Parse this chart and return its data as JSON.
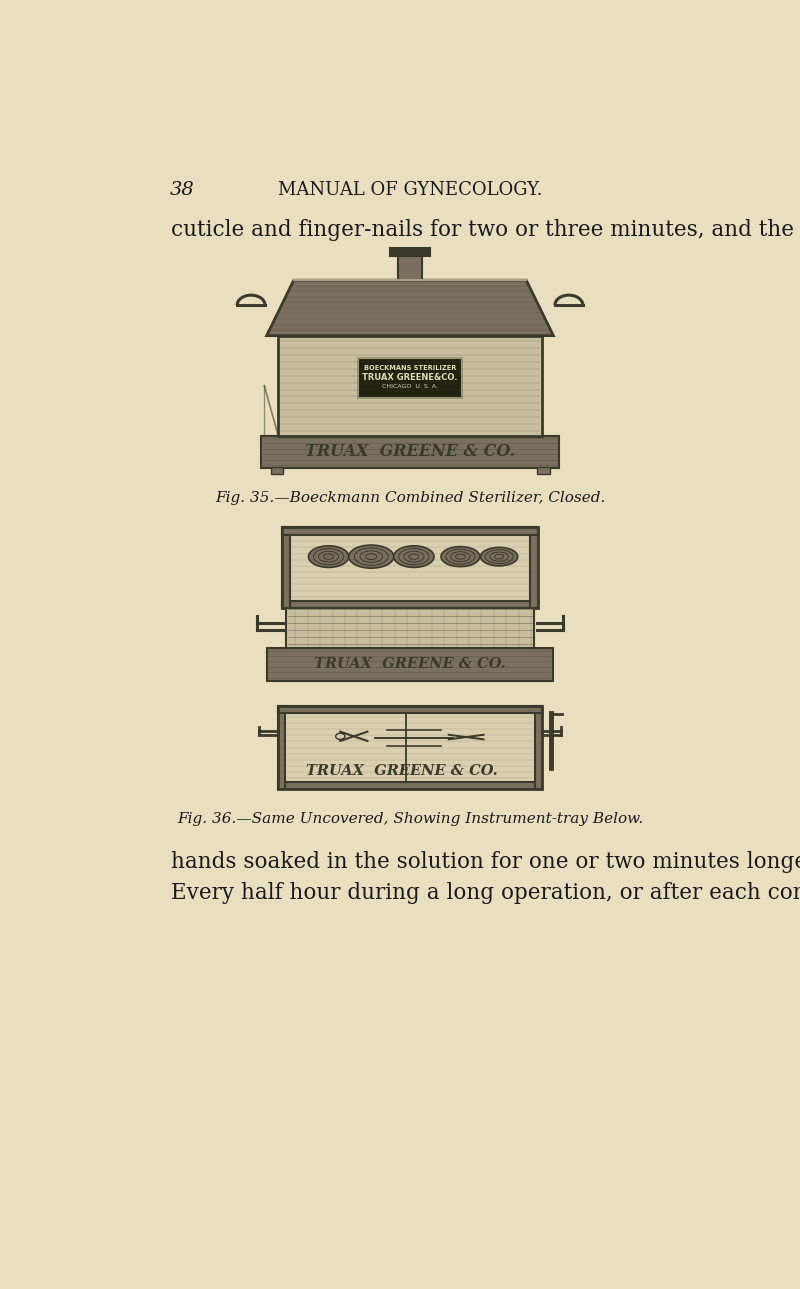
{
  "bg_color": "#e8dfc0",
  "page_num": "38",
  "header": "MANUAL OF GYNECOLOGY.",
  "top_text": "cuticle and finger-nails for two or three minutes, and the",
  "caption1": "Fig. 35.—Boeckmann Combined Sterilizer, Closed.",
  "caption2": "Fig. 36.—Same Uncovered, Showing Instrument-tray Below.",
  "bottom_text1": "hands soaked in the solution for one or two minutes longer.",
  "bottom_text2": "Every half hour during a long operation, or after each con-",
  "text_color": "#1a1a1a",
  "fig_bg": "#c8bfa0",
  "fig_dark": "#3a3a2a",
  "fig_mid": "#7a7060",
  "fig_light": "#d8d0b0"
}
